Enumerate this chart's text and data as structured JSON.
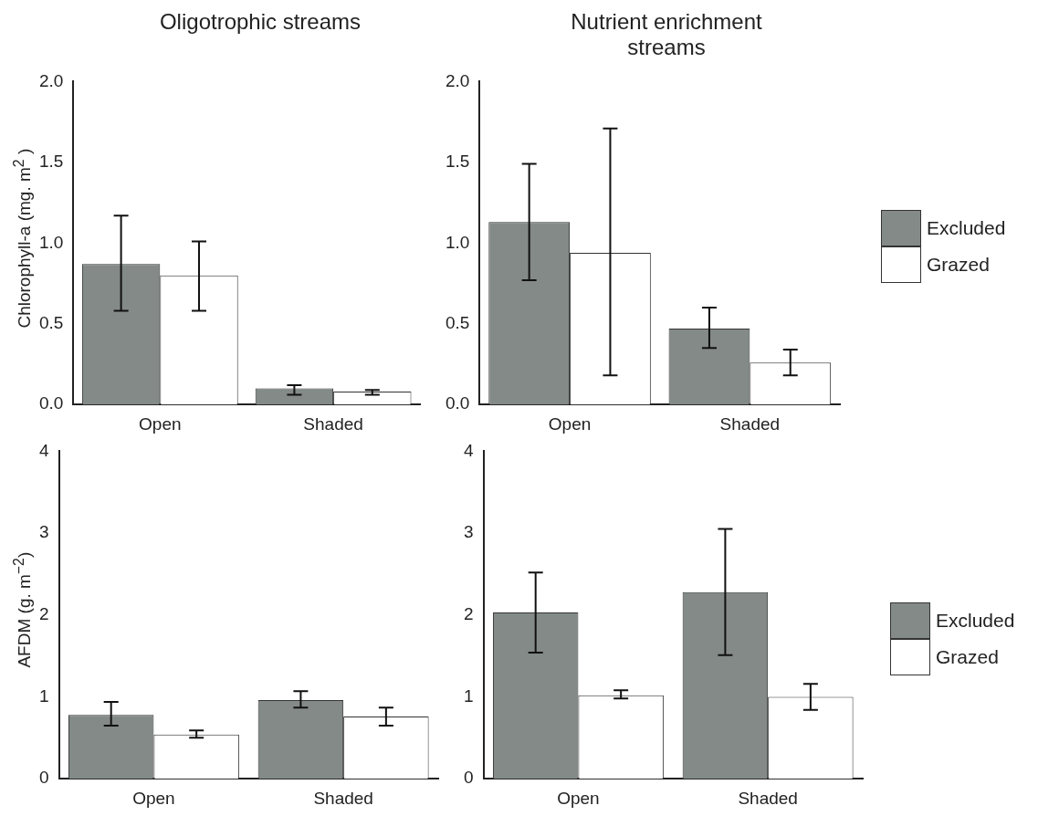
{
  "chart_data": [
    {
      "type": "bar",
      "title": "Oligotrophic streams",
      "ylabel": "Chlorophyll-a (mg. m$^{2}$ )",
      "categories": [
        "Open",
        "Shaded"
      ],
      "ylim": [
        0,
        2
      ],
      "yticks": [
        {
          "value": 0,
          "label": "0.0"
        },
        {
          "value": 0.5,
          "label": "0.5"
        },
        {
          "value": 1,
          "label": "1.0"
        },
        {
          "value": 1.5,
          "label": "1.5"
        },
        {
          "value": 2,
          "label": "2.0"
        }
      ],
      "grid": false,
      "legend": false,
      "series": [
        {
          "color": "#838a87",
          "values": [
            0.87,
            0.1
          ],
          "errors": [
            [
              0.58,
              1.17
            ],
            [
              0.06,
              0.12
            ]
          ]
        },
        {
          "color": "#ffffff",
          "values": [
            0.8,
            0.08
          ],
          "errors": [
            [
              0.58,
              1.01
            ],
            [
              0.06,
              0.09
            ]
          ]
        }
      ]
    },
    {
      "type": "bar",
      "title": "Nutrient enrichment streams",
      "categories": [
        "Open",
        "Shaded"
      ],
      "ylim": [
        0,
        2
      ],
      "yticks": [
        {
          "value": 0,
          "label": "0.0"
        },
        {
          "value": 0.5,
          "label": "0.5"
        },
        {
          "value": 1,
          "label": "1.0"
        },
        {
          "value": 1.5,
          "label": "1.5"
        },
        {
          "value": 2,
          "label": "2.0"
        }
      ],
      "grid": false,
      "legend": "right",
      "series": [
        {
          "name": "Excluded",
          "color": "#838a87",
          "values": [
            1.13,
            0.47
          ],
          "errors": [
            [
              0.77,
              1.49
            ],
            [
              0.35,
              0.6
            ]
          ]
        },
        {
          "name": "Grazed",
          "color": "#ffffff",
          "values": [
            0.94,
            0.26
          ],
          "errors": [
            [
              0.18,
              1.71
            ],
            [
              0.18,
              0.34
            ]
          ]
        }
      ]
    },
    {
      "type": "bar",
      "ylabel": "AFDM (g. m$^{−2}$)",
      "categories": [
        "Open",
        "Shaded"
      ],
      "ylim": [
        0,
        4
      ],
      "yticks": [
        0,
        1,
        2,
        3,
        4
      ],
      "grid": false,
      "legend": false,
      "series": [
        {
          "color": "#838a87",
          "values": [
            0.78,
            0.96
          ],
          "errors": [
            [
              0.65,
              0.94
            ],
            [
              0.87,
              1.07
            ]
          ]
        },
        {
          "color": "#ffffff",
          "values": [
            0.54,
            0.76
          ],
          "errors": [
            [
              0.5,
              0.59
            ],
            [
              0.65,
              0.87
            ]
          ]
        }
      ]
    },
    {
      "type": "bar",
      "categories": [
        "Open",
        "Shaded"
      ],
      "ylim": [
        0,
        4
      ],
      "yticks": [
        0,
        1,
        2,
        3,
        4
      ],
      "grid": false,
      "legend": "right",
      "series": [
        {
          "name": "Excluded",
          "color": "#838a87",
          "values": [
            2.03,
            2.28
          ],
          "errors": [
            [
              1.54,
              2.52
            ],
            [
              1.51,
              3.05
            ]
          ]
        },
        {
          "name": "Grazed",
          "color": "#ffffff",
          "values": [
            1.02,
            1.0
          ],
          "errors": [
            [
              0.98,
              1.08
            ],
            [
              0.84,
              1.16
            ]
          ]
        }
      ]
    }
  ]
}
